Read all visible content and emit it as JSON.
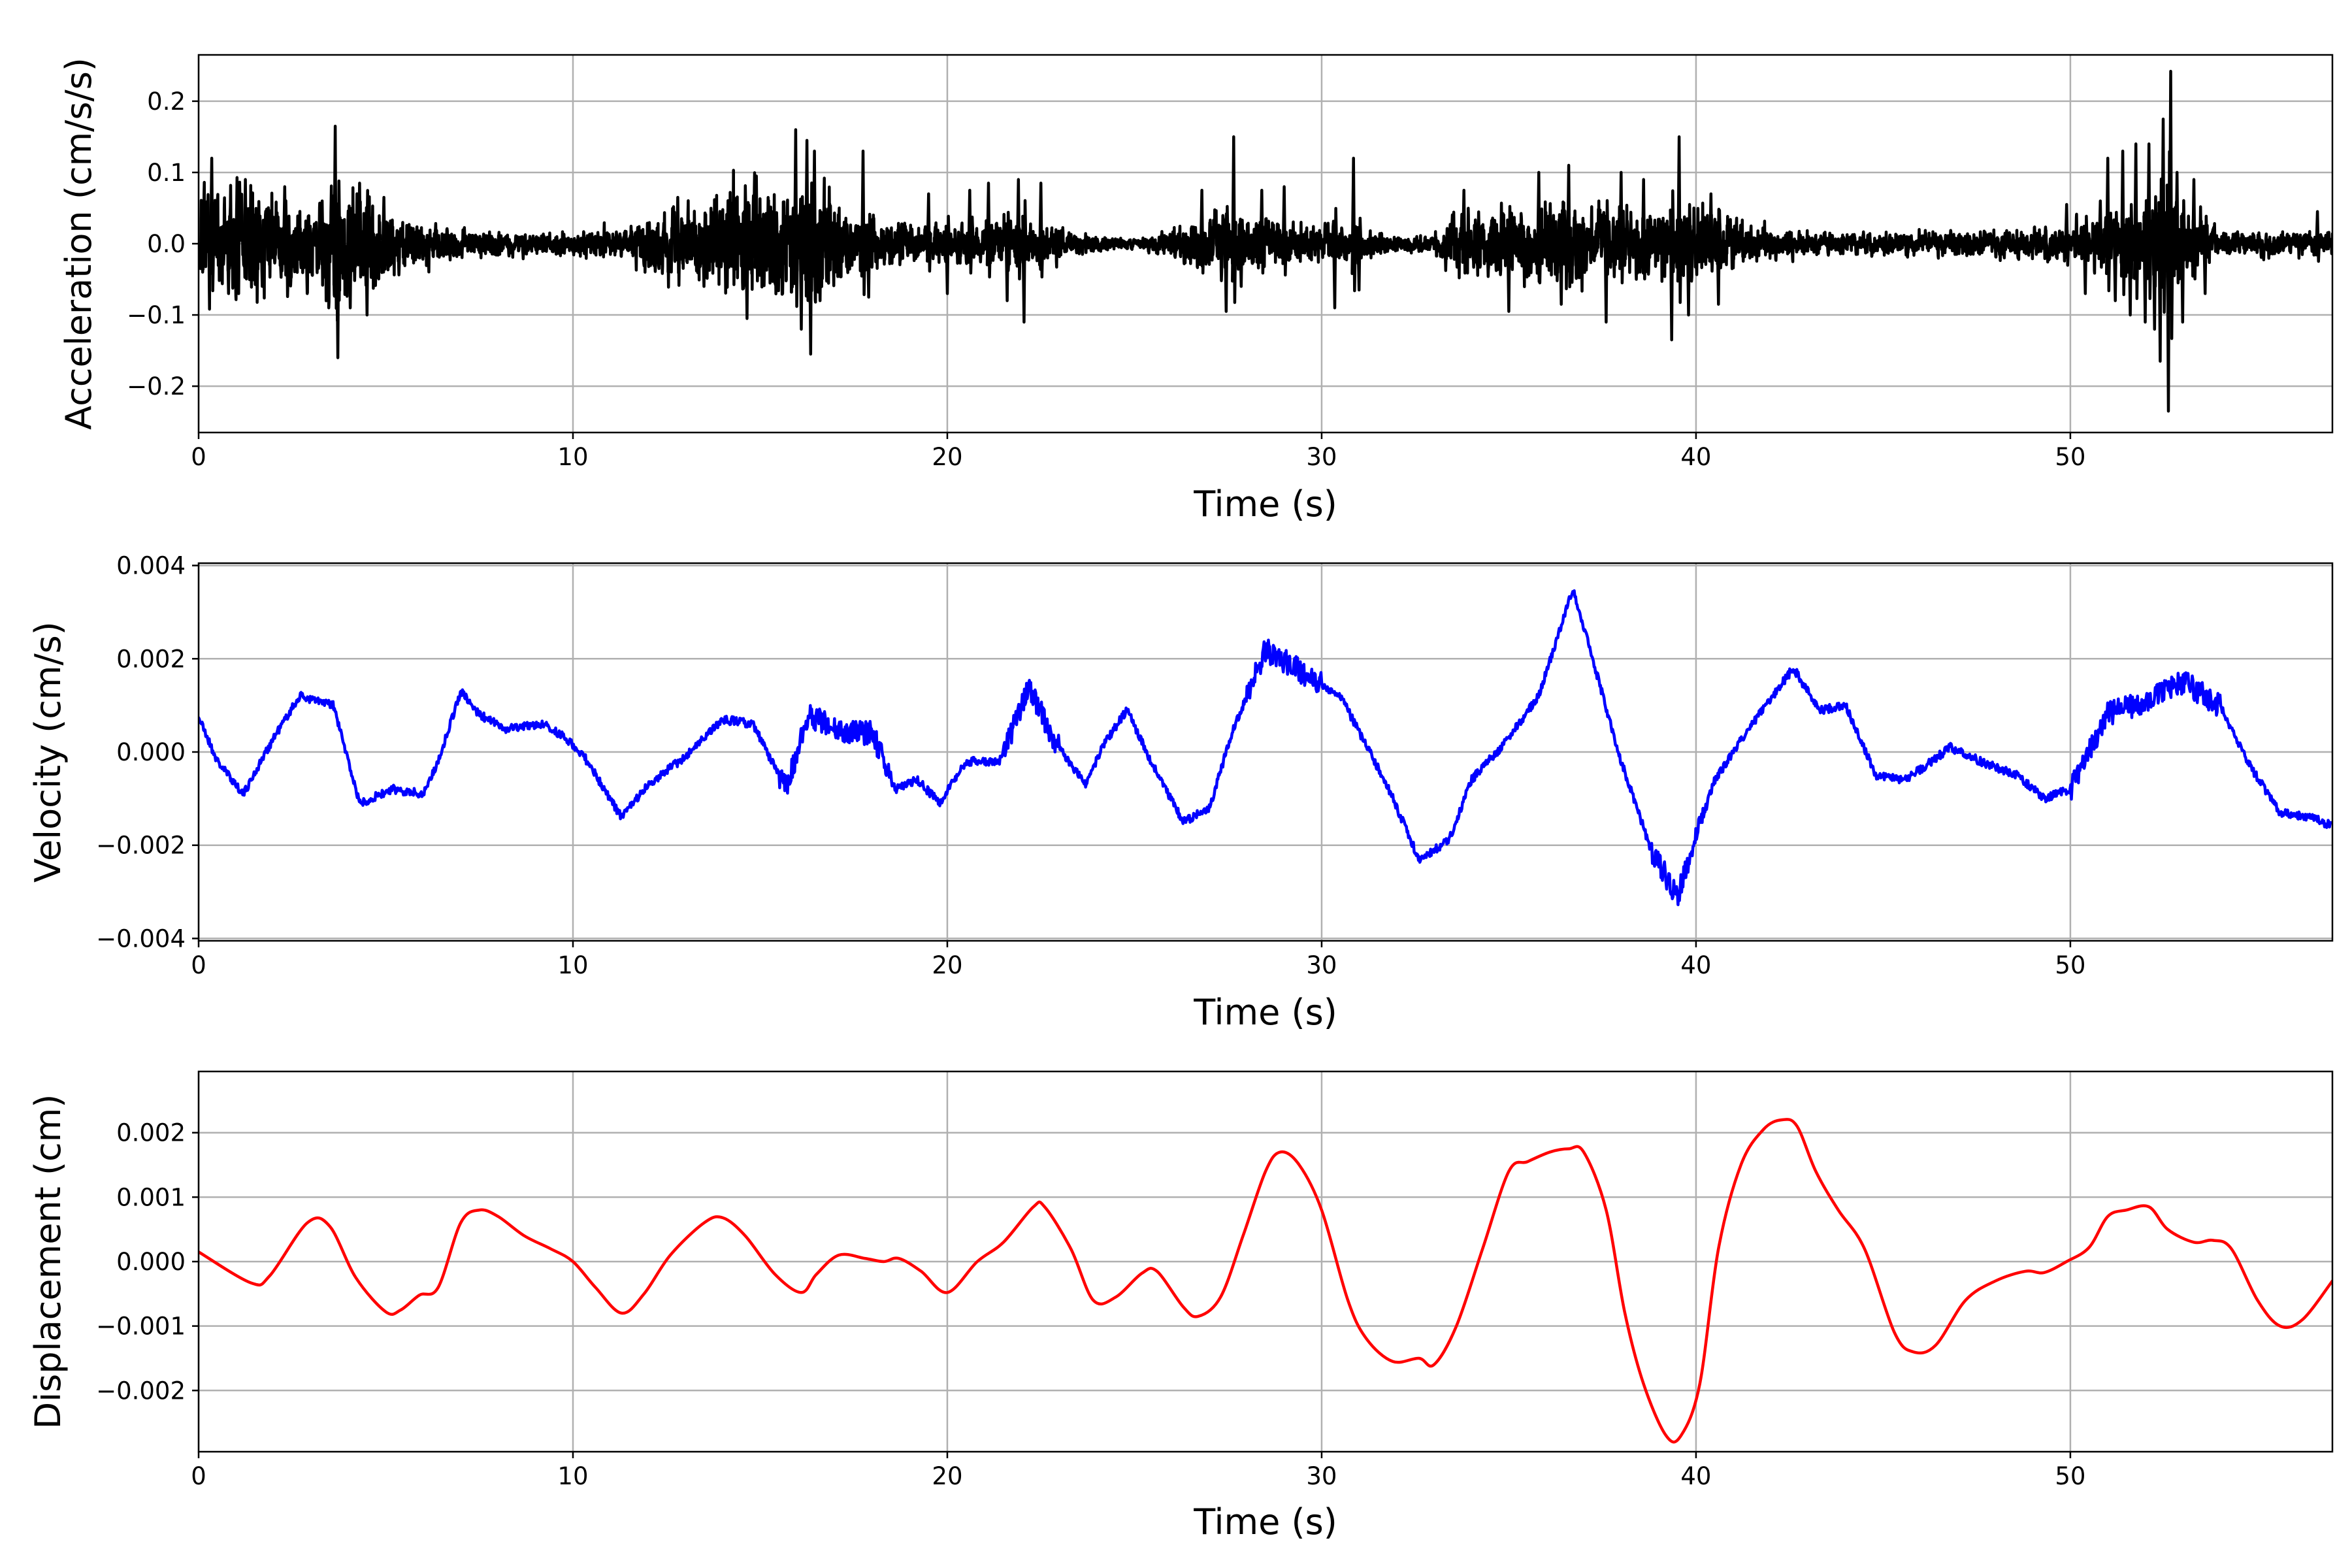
{
  "chart_data": [
    {
      "type": "line",
      "title": "",
      "xlabel": "Time (s)",
      "ylabel": "Acceleration (cm/s/s)",
      "xlim": [
        0,
        57
      ],
      "ylim": [
        -0.265,
        0.265
      ],
      "xticks": [
        0,
        10,
        20,
        30,
        40,
        50
      ],
      "xtick_labels": [
        "0",
        "10",
        "20",
        "30",
        "40",
        "50"
      ],
      "yticks": [
        0.2,
        0.1,
        0.0,
        -0.1,
        -0.2
      ],
      "ytick_labels": [
        "0.2",
        "0.1",
        "0.0",
        "−0.1",
        "−0.2"
      ],
      "grid": true,
      "color": "#000000",
      "signal": "noisy broadband record with impulsive spikes",
      "envelope": {
        "x": [
          0,
          1,
          2,
          3,
          3.7,
          5,
          6,
          8,
          10,
          11.5,
          12.5,
          13.5,
          14.5,
          15.5,
          16.3,
          17,
          18,
          19,
          20,
          21,
          22,
          23,
          24,
          25,
          26,
          27,
          27.7,
          29,
          30,
          31,
          32,
          33,
          33.5,
          34.5,
          35.5,
          36.3,
          37,
          38,
          39,
          39.6,
          40.5,
          41.5,
          43,
          46,
          48,
          50,
          51,
          52,
          52.6,
          53.3,
          54,
          55,
          56,
          57
        ],
        "y": [
          0.05,
          0.06,
          0.05,
          0.045,
          0.07,
          0.04,
          0.02,
          0.012,
          0.012,
          0.02,
          0.04,
          0.045,
          0.06,
          0.06,
          0.07,
          0.05,
          0.03,
          0.02,
          0.02,
          0.025,
          0.025,
          0.02,
          0.008,
          0.005,
          0.015,
          0.03,
          0.03,
          0.025,
          0.02,
          0.015,
          0.01,
          0.01,
          0.03,
          0.035,
          0.04,
          0.05,
          0.035,
          0.035,
          0.035,
          0.04,
          0.035,
          0.02,
          0.012,
          0.012,
          0.015,
          0.02,
          0.03,
          0.04,
          0.05,
          0.03,
          0.015,
          0.012,
          0.012,
          0.012
        ]
      },
      "spikes": [
        {
          "x": 0.35,
          "y": 0.12
        },
        {
          "x": 0.8,
          "y": -0.07
        },
        {
          "x": 1.25,
          "y": 0.09
        },
        {
          "x": 1.7,
          "y": -0.06
        },
        {
          "x": 2.3,
          "y": 0.08
        },
        {
          "x": 2.9,
          "y": -0.07
        },
        {
          "x": 3.3,
          "y": 0.06
        },
        {
          "x": 3.65,
          "y": 0.165
        },
        {
          "x": 3.72,
          "y": -0.16
        },
        {
          "x": 4.05,
          "y": -0.09
        },
        {
          "x": 4.3,
          "y": 0.085
        },
        {
          "x": 4.5,
          "y": -0.1
        },
        {
          "x": 4.95,
          "y": 0.065
        },
        {
          "x": 12.8,
          "y": 0.065
        },
        {
          "x": 13.5,
          "y": -0.06
        },
        {
          "x": 14.3,
          "y": 0.065
        },
        {
          "x": 14.65,
          "y": -0.105
        },
        {
          "x": 14.9,
          "y": 0.095
        },
        {
          "x": 15.6,
          "y": -0.07
        },
        {
          "x": 15.95,
          "y": 0.16
        },
        {
          "x": 16.1,
          "y": -0.12
        },
        {
          "x": 16.25,
          "y": 0.145
        },
        {
          "x": 16.35,
          "y": -0.155
        },
        {
          "x": 16.45,
          "y": 0.13
        },
        {
          "x": 16.6,
          "y": -0.08
        },
        {
          "x": 17.75,
          "y": 0.13
        },
        {
          "x": 17.9,
          "y": -0.075
        },
        {
          "x": 19.5,
          "y": 0.07
        },
        {
          "x": 20.0,
          "y": -0.07
        },
        {
          "x": 20.6,
          "y": 0.075
        },
        {
          "x": 21.1,
          "y": 0.085
        },
        {
          "x": 21.6,
          "y": -0.08
        },
        {
          "x": 21.9,
          "y": 0.09
        },
        {
          "x": 22.05,
          "y": -0.11
        },
        {
          "x": 22.5,
          "y": 0.085
        },
        {
          "x": 26.8,
          "y": 0.075
        },
        {
          "x": 27.45,
          "y": -0.095
        },
        {
          "x": 27.65,
          "y": 0.15
        },
        {
          "x": 27.85,
          "y": -0.06
        },
        {
          "x": 28.4,
          "y": 0.075
        },
        {
          "x": 29.0,
          "y": 0.08
        },
        {
          "x": 30.35,
          "y": -0.09
        },
        {
          "x": 30.85,
          "y": 0.12
        },
        {
          "x": 31.0,
          "y": -0.065
        },
        {
          "x": 33.8,
          "y": 0.075
        },
        {
          "x": 35.0,
          "y": -0.095
        },
        {
          "x": 35.8,
          "y": 0.1
        },
        {
          "x": 36.4,
          "y": -0.085
        },
        {
          "x": 36.6,
          "y": 0.11
        },
        {
          "x": 37.6,
          "y": -0.11
        },
        {
          "x": 38.0,
          "y": 0.1
        },
        {
          "x": 38.6,
          "y": 0.09
        },
        {
          "x": 39.35,
          "y": -0.135
        },
        {
          "x": 39.55,
          "y": 0.15
        },
        {
          "x": 39.8,
          "y": -0.1
        },
        {
          "x": 40.4,
          "y": 0.07
        },
        {
          "x": 40.6,
          "y": -0.085
        },
        {
          "x": 49.9,
          "y": 0.055
        },
        {
          "x": 50.4,
          "y": -0.07
        },
        {
          "x": 50.8,
          "y": 0.06
        },
        {
          "x": 51.0,
          "y": 0.12
        },
        {
          "x": 51.2,
          "y": -0.08
        },
        {
          "x": 51.4,
          "y": 0.13
        },
        {
          "x": 51.6,
          "y": -0.1
        },
        {
          "x": 51.75,
          "y": 0.14
        },
        {
          "x": 52.0,
          "y": -0.11
        },
        {
          "x": 52.1,
          "y": 0.14
        },
        {
          "x": 52.25,
          "y": -0.12
        },
        {
          "x": 52.4,
          "y": -0.165
        },
        {
          "x": 52.48,
          "y": 0.175
        },
        {
          "x": 52.62,
          "y": -0.235
        },
        {
          "x": 52.68,
          "y": 0.242
        },
        {
          "x": 52.85,
          "y": 0.1
        },
        {
          "x": 53.0,
          "y": -0.11
        },
        {
          "x": 53.3,
          "y": 0.09
        },
        {
          "x": 53.6,
          "y": -0.07
        },
        {
          "x": 56.6,
          "y": 0.045
        }
      ]
    },
    {
      "type": "line",
      "title": "",
      "xlabel": "Time (s)",
      "ylabel": "Velocity (cm/s)",
      "xlim": [
        0,
        57
      ],
      "ylim": [
        -0.00405,
        0.00405
      ],
      "xticks": [
        0,
        10,
        20,
        30,
        40,
        50
      ],
      "xtick_labels": [
        "0",
        "10",
        "20",
        "30",
        "40",
        "50"
      ],
      "yticks": [
        0.004,
        0.002,
        0.0,
        -0.002,
        -0.004
      ],
      "ytick_labels": [
        "0.004",
        "0.002",
        "0.000",
        "−0.002",
        "−0.004"
      ],
      "grid": true,
      "color": "#0000ff",
      "x": [
        0,
        0.5,
        1.2,
        2.0,
        2.7,
        3.6,
        4.3,
        5.2,
        6.0,
        6.4,
        7.0,
        7.5,
        8.2,
        9.2,
        9.8,
        10.3,
        11.3,
        12.0,
        13.0,
        14.0,
        14.8,
        15.7,
        16.3,
        17.2,
        18.0,
        18.6,
        19.2,
        19.8,
        20.5,
        21.4,
        22.2,
        22.8,
        23.7,
        24.2,
        24.8,
        25.5,
        26.3,
        27.0,
        27.6,
        28.5,
        29.5,
        30.5,
        31.8,
        32.6,
        33.4,
        34.0,
        34.9,
        35.8,
        36.7,
        37.2,
        38.0,
        38.8,
        39.5,
        40.5,
        41.5,
        42.6,
        43.3,
        44.0,
        44.8,
        45.6,
        46.8,
        47.6,
        48.6,
        49.3,
        50.0,
        51.0,
        52.0,
        53.0,
        54.0,
        54.8,
        55.6,
        56.5,
        57.0
      ],
      "y": [
        0.00075,
        -0.0002,
        -0.0009,
        0.0003,
        0.0012,
        0.001,
        -0.0011,
        -0.0008,
        -0.0009,
        -0.0002,
        0.0013,
        0.0008,
        0.0005,
        0.0006,
        0.0003,
        -0.0001,
        -0.0014,
        -0.0007,
        -0.0001,
        0.0007,
        0.0006,
        -0.0008,
        0.0008,
        0.0004,
        0.0004,
        -0.0008,
        -0.0006,
        -0.0011,
        -0.0002,
        -0.0002,
        0.0014,
        0.0003,
        -0.0007,
        0.0002,
        0.0009,
        -0.0003,
        -0.0015,
        -0.0012,
        0.0004,
        0.0022,
        0.0017,
        0.0012,
        -0.0008,
        -0.0023,
        -0.0019,
        -0.0006,
        0.0002,
        0.0012,
        0.0035,
        0.0021,
        -0.0002,
        -0.0021,
        -0.0031,
        -0.0006,
        0.0006,
        0.0018,
        0.0009,
        0.001,
        -0.0005,
        -0.0006,
        0.0001,
        -0.0002,
        -0.0005,
        -0.001,
        -0.0008,
        0.0008,
        0.0011,
        0.0015,
        0.001,
        -0.0003,
        -0.0013,
        -0.0014,
        -0.0016
      ]
    },
    {
      "type": "line",
      "title": "",
      "xlabel": "Time (s)",
      "ylabel": "Displacement (cm)",
      "xlim": [
        0,
        57
      ],
      "ylim": [
        -0.00295,
        0.00295
      ],
      "xticks": [
        0,
        10,
        20,
        30,
        40,
        50
      ],
      "xtick_labels": [
        "0",
        "10",
        "20",
        "30",
        "40",
        "50"
      ],
      "yticks": [
        0.002,
        0.001,
        0.0,
        -0.001,
        -0.002
      ],
      "ytick_labels": [
        "0.002",
        "0.001",
        "0.000",
        "−0.001",
        "−0.002"
      ],
      "grid": true,
      "color": "#ff0000",
      "x": [
        0,
        1.4,
        1.9,
        2.9,
        3.5,
        4.2,
        5.0,
        5.4,
        5.9,
        6.4,
        7.0,
        7.5,
        8.0,
        8.7,
        9.4,
        10.0,
        10.6,
        11.3,
        11.9,
        12.6,
        13.5,
        14.0,
        14.6,
        15.4,
        16.1,
        16.5,
        17.1,
        17.8,
        18.3,
        18.7,
        19.3,
        20.0,
        20.8,
        21.5,
        22.3,
        22.6,
        23.3,
        23.9,
        24.5,
        25.2,
        25.6,
        26.3,
        26.7,
        27.3,
        27.9,
        28.5,
        28.9,
        29.4,
        30.0,
        30.7,
        31.2,
        31.9,
        32.6,
        33.0,
        33.6,
        34.3,
        35.0,
        35.5,
        36.1,
        36.6,
        37.0,
        37.6,
        38.1,
        38.6,
        39.2,
        39.6,
        40.1,
        40.6,
        41.2,
        41.8,
        42.3,
        42.7,
        43.2,
        43.8,
        44.5,
        45.3,
        45.8,
        46.4,
        47.2,
        48.0,
        48.8,
        49.3,
        49.9,
        50.5,
        51.0,
        51.5,
        52.1,
        52.6,
        53.3,
        53.8,
        54.3,
        55.0,
        55.6,
        56.2,
        57.0
      ],
      "y": [
        0.00015,
        -0.00033,
        -0.00022,
        0.0006,
        0.00055,
        -0.00025,
        -0.00078,
        -0.00075,
        -0.00052,
        -0.0004,
        0.0006,
        0.0008,
        0.0007,
        0.0004,
        0.0002,
        0.0,
        -0.0004,
        -0.0008,
        -0.0005,
        0.0001,
        0.0006,
        0.00068,
        0.0004,
        -0.0002,
        -0.00048,
        -0.0002,
        0.0001,
        5e-05,
        0.0,
        5e-05,
        -0.00015,
        -0.00048,
        0.0,
        0.0003,
        0.00085,
        0.00085,
        0.0002,
        -0.0006,
        -0.00055,
        -0.00018,
        -0.00015,
        -0.0007,
        -0.00085,
        -0.00055,
        0.0004,
        0.0014,
        0.0017,
        0.0015,
        0.0008,
        -0.0006,
        -0.0012,
        -0.00155,
        -0.0015,
        -0.0016,
        -0.001,
        0.0002,
        0.0014,
        0.00155,
        0.0017,
        0.00175,
        0.0017,
        0.0008,
        -0.0008,
        -0.0019,
        -0.0027,
        -0.0027,
        -0.0019,
        0.0002,
        0.0015,
        0.00205,
        0.0022,
        0.0021,
        0.0014,
        0.0008,
        0.0002,
        -0.0011,
        -0.0014,
        -0.0013,
        -0.0006,
        -0.0003,
        -0.00015,
        -0.00017,
        0.0,
        0.00022,
        0.0007,
        0.0008,
        0.00085,
        0.0005,
        0.0003,
        0.00033,
        0.0002,
        -0.0006,
        -0.001,
        -0.0009,
        -0.0003
      ]
    }
  ]
}
